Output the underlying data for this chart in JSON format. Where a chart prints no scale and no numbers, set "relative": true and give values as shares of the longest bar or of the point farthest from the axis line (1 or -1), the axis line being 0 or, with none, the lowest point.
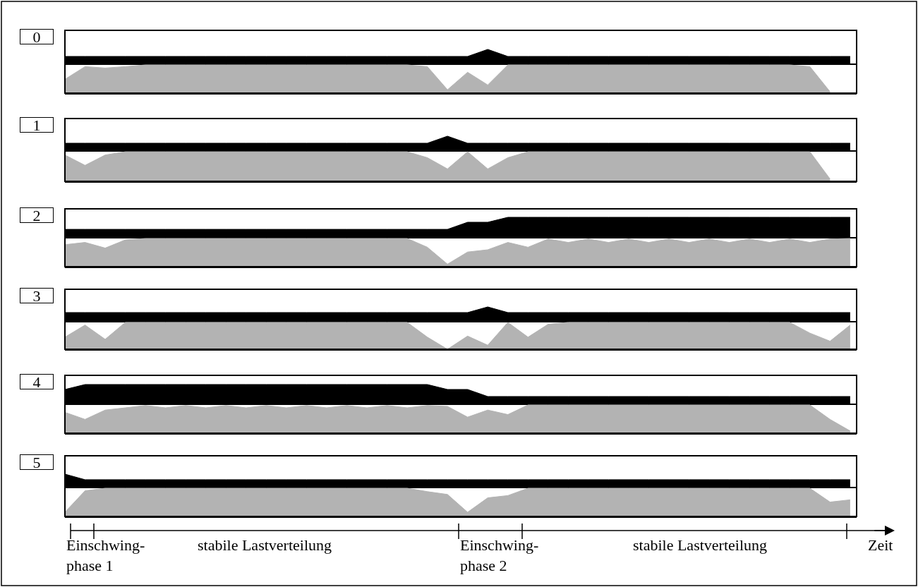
{
  "chart_data": [
    {
      "type": "area",
      "title": "0",
      "relative": true,
      "categories": [
        null,
        null,
        null,
        null,
        null,
        null,
        null,
        null,
        null,
        null,
        null,
        null,
        null,
        null,
        null,
        null,
        null,
        null,
        null,
        null,
        null,
        null,
        null,
        null,
        null,
        null,
        null,
        null,
        null,
        null,
        null,
        null,
        null,
        null,
        null,
        null,
        null,
        null,
        null,
        null
      ],
      "series": [
        {
          "color": "#000000",
          "values": [
            0.5,
            0.5,
            0.5,
            0.5,
            0.5,
            0.5,
            0.5,
            0.5,
            0.5,
            0.5,
            0.5,
            0.5,
            0.5,
            0.5,
            0.5,
            0.5,
            0.5,
            0.5,
            0.5,
            0.5,
            0.5,
            1.0,
            0.5,
            0.5,
            0.5,
            0.5,
            0.5,
            0.5,
            0.5,
            0.5,
            0.5,
            0.5,
            0.5,
            0.5,
            0.5,
            0.5,
            0.5,
            0.5,
            0.5,
            0.5
          ]
        }
      ]
    },
    {
      "type": "area",
      "relative": true,
      "categories": [
        null,
        null,
        null,
        null,
        null,
        null,
        null,
        null,
        null,
        null,
        null,
        null,
        null,
        null,
        null,
        null,
        null,
        null,
        null,
        null,
        null,
        null,
        null,
        null,
        null,
        null,
        null,
        null,
        null,
        null,
        null,
        null,
        null,
        null,
        null,
        null,
        null,
        null,
        null,
        null
      ],
      "series": [
        {
          "color": "#b3b3b3",
          "values": [
            0.49,
            0.94,
            0.89,
            0.94,
            1,
            1,
            1,
            1,
            1,
            1,
            1,
            1,
            1,
            1,
            1,
            1,
            1,
            1,
            0.94,
            0.12,
            0.74,
            0.29,
            1,
            1,
            1,
            1,
            1,
            1,
            1,
            1,
            1,
            1,
            1,
            1,
            1,
            1,
            1,
            0.94,
            0.05,
            null
          ]
        }
      ]
    },
    {
      "type": "area",
      "title": "1",
      "relative": true,
      "categories": [
        null,
        null,
        null,
        null,
        null,
        null,
        null,
        null,
        null,
        null,
        null,
        null,
        null,
        null,
        null,
        null,
        null,
        null,
        null,
        null,
        null,
        null,
        null,
        null,
        null,
        null,
        null,
        null,
        null,
        null,
        null,
        null,
        null,
        null,
        null,
        null,
        null,
        null,
        null,
        null
      ],
      "series": [
        {
          "color": "#000000",
          "values": [
            0.5,
            0.5,
            0.5,
            0.5,
            0.5,
            0.5,
            0.5,
            0.5,
            0.5,
            0.5,
            0.5,
            0.5,
            0.5,
            0.5,
            0.5,
            0.5,
            0.5,
            0.5,
            0.5,
            1.0,
            0.5,
            0.5,
            0.5,
            0.5,
            0.5,
            0.5,
            0.5,
            0.5,
            0.5,
            0.5,
            0.5,
            0.5,
            0.5,
            0.5,
            0.5,
            0.5,
            0.5,
            0.5,
            0.5,
            0.5
          ]
        }
      ]
    },
    {
      "type": "area",
      "relative": true,
      "categories": [
        null,
        null,
        null,
        null,
        null,
        null,
        null,
        null,
        null,
        null,
        null,
        null,
        null,
        null,
        null,
        null,
        null,
        null,
        null,
        null,
        null,
        null,
        null,
        null,
        null,
        null,
        null,
        null,
        null,
        null,
        null,
        null,
        null,
        null,
        null,
        null,
        null,
        null,
        null,
        null
      ],
      "series": [
        {
          "color": "#b3b3b3",
          "values": [
            0.89,
            0.54,
            0.89,
            1,
            1,
            1,
            1,
            1,
            1,
            1,
            1,
            1,
            1,
            1,
            1,
            1,
            1,
            1,
            0.8,
            0.42,
            1,
            0.42,
            0.8,
            1,
            1,
            1,
            1,
            1,
            1,
            1,
            1,
            1,
            1,
            1,
            1,
            1,
            1,
            1,
            0.08,
            null
          ]
        }
      ]
    },
    {
      "type": "area",
      "title": "2",
      "relative": true,
      "categories": [
        null,
        null,
        null,
        null,
        null,
        null,
        null,
        null,
        null,
        null,
        null,
        null,
        null,
        null,
        null,
        null,
        null,
        null,
        null,
        null,
        null,
        null,
        null,
        null,
        null,
        null,
        null,
        null,
        null,
        null,
        null,
        null,
        null,
        null,
        null,
        null,
        null,
        null,
        null,
        null
      ],
      "series": [
        {
          "color": "#000000",
          "values": [
            0.39,
            0.39,
            0.39,
            0.39,
            0.39,
            0.39,
            0.39,
            0.39,
            0.39,
            0.39,
            0.39,
            0.39,
            0.39,
            0.39,
            0.39,
            0.39,
            0.39,
            0.39,
            0.39,
            0.39,
            0.75,
            0.75,
            1.0,
            1.0,
            1.0,
            1.0,
            1.0,
            1.0,
            1.0,
            1.0,
            1.0,
            1.0,
            1.0,
            1.0,
            1.0,
            1.0,
            1.0,
            1.0,
            1.0,
            1.0
          ]
        }
      ]
    },
    {
      "type": "area",
      "relative": true,
      "categories": [
        null,
        null,
        null,
        null,
        null,
        null,
        null,
        null,
        null,
        null,
        null,
        null,
        null,
        null,
        null,
        null,
        null,
        null,
        null,
        null,
        null,
        null,
        null,
        null,
        null,
        null,
        null,
        null,
        null,
        null,
        null,
        null,
        null,
        null,
        null,
        null,
        null,
        null,
        null,
        null
      ],
      "series": [
        {
          "color": "#b3b3b3",
          "values": [
            0.78,
            0.86,
            0.66,
            0.95,
            1,
            1,
            1,
            1,
            1,
            1,
            1,
            1,
            1,
            1,
            1,
            1,
            1,
            1,
            0.69,
            0.09,
            0.52,
            0.6,
            0.86,
            0.69,
            0.98,
            0.86,
            0.98,
            0.86,
            0.98,
            0.86,
            0.98,
            0.86,
            0.98,
            0.86,
            0.98,
            0.86,
            0.98,
            0.86,
            0.98,
            1
          ]
        }
      ]
    },
    {
      "type": "area",
      "title": "3",
      "relative": true,
      "categories": [
        null,
        null,
        null,
        null,
        null,
        null,
        null,
        null,
        null,
        null,
        null,
        null,
        null,
        null,
        null,
        null,
        null,
        null,
        null,
        null,
        null,
        null,
        null,
        null,
        null,
        null,
        null,
        null,
        null,
        null,
        null,
        null,
        null,
        null,
        null,
        null,
        null,
        null,
        null,
        null
      ],
      "series": [
        {
          "color": "#000000",
          "values": [
            0.6,
            0.6,
            0.6,
            0.6,
            0.6,
            0.6,
            0.6,
            0.6,
            0.6,
            0.6,
            0.6,
            0.6,
            0.6,
            0.6,
            0.6,
            0.6,
            0.6,
            0.6,
            0.6,
            0.6,
            0.6,
            1.0,
            0.6,
            0.6,
            0.6,
            0.6,
            0.6,
            0.6,
            0.6,
            0.6,
            0.6,
            0.6,
            0.6,
            0.6,
            0.6,
            0.6,
            0.6,
            0.6,
            0.6,
            0.6
          ]
        }
      ]
    },
    {
      "type": "area",
      "relative": true,
      "categories": [
        null,
        null,
        null,
        null,
        null,
        null,
        null,
        null,
        null,
        null,
        null,
        null,
        null,
        null,
        null,
        null,
        null,
        null,
        null,
        null,
        null,
        null,
        null,
        null,
        null,
        null,
        null,
        null,
        null,
        null,
        null,
        null,
        null,
        null,
        null,
        null,
        null,
        null,
        null,
        null
      ],
      "series": [
        {
          "color": "#b3b3b3",
          "values": [
            0.45,
            0.9,
            0.37,
            1,
            1,
            1,
            1,
            1,
            1,
            1,
            1,
            1,
            1,
            1,
            1,
            1,
            1,
            1,
            0.45,
            0,
            0.49,
            0.15,
            1,
            0.45,
            0.93,
            1,
            1,
            1,
            1,
            1,
            1,
            1,
            1,
            1,
            1,
            1,
            1,
            0.6,
            0.3,
            0.9
          ]
        }
      ]
    },
    {
      "type": "area",
      "title": "4",
      "relative": true,
      "categories": [
        null,
        null,
        null,
        null,
        null,
        null,
        null,
        null,
        null,
        null,
        null,
        null,
        null,
        null,
        null,
        null,
        null,
        null,
        null,
        null,
        null,
        null,
        null,
        null,
        null,
        null,
        null,
        null,
        null,
        null,
        null,
        null,
        null,
        null,
        null,
        null,
        null,
        null,
        null,
        null
      ],
      "series": [
        {
          "color": "#000000",
          "values": [
            0.74,
            1.0,
            1.0,
            1.0,
            1.0,
            1.0,
            1.0,
            1.0,
            1.0,
            1.0,
            1.0,
            1.0,
            1.0,
            1.0,
            1.0,
            1.0,
            1.0,
            1.0,
            1.0,
            0.74,
            0.74,
            0.37,
            0.37,
            0.37,
            0.37,
            0.37,
            0.37,
            0.37,
            0.37,
            0.37,
            0.37,
            0.37,
            0.37,
            0.37,
            0.37,
            0.37,
            0.37,
            0.37,
            0.37,
            0.37
          ]
        }
      ]
    },
    {
      "type": "area",
      "relative": true,
      "categories": [
        null,
        null,
        null,
        null,
        null,
        null,
        null,
        null,
        null,
        null,
        null,
        null,
        null,
        null,
        null,
        null,
        null,
        null,
        null,
        null,
        null,
        null,
        null,
        null,
        null,
        null,
        null,
        null,
        null,
        null,
        null,
        null,
        null,
        null,
        null,
        null,
        null,
        null,
        null,
        null
      ],
      "series": [
        {
          "color": "#b3b3b3",
          "values": [
            0.74,
            0.49,
            0.82,
            0.9,
            0.98,
            0.9,
            0.98,
            0.9,
            0.98,
            0.9,
            0.98,
            0.9,
            0.98,
            0.9,
            0.98,
            0.9,
            0.98,
            0.9,
            0.98,
            0.95,
            0.57,
            0.82,
            0.66,
            1,
            1,
            1,
            1,
            1,
            1,
            1,
            1,
            1,
            1,
            1,
            1,
            1,
            1,
            1,
            0.49,
            0.08
          ]
        }
      ]
    },
    {
      "type": "area",
      "title": "5",
      "relative": true,
      "categories": [
        null,
        null,
        null,
        null,
        null,
        null,
        null,
        null,
        null,
        null,
        null,
        null,
        null,
        null,
        null,
        null,
        null,
        null,
        null,
        null,
        null,
        null,
        null,
        null,
        null,
        null,
        null,
        null,
        null,
        null,
        null,
        null,
        null,
        null,
        null,
        null,
        null,
        null,
        null,
        null
      ],
      "series": [
        {
          "color": "#000000",
          "values": [
            1.0,
            0.56,
            0.56,
            0.56,
            0.56,
            0.56,
            0.56,
            0.56,
            0.56,
            0.56,
            0.56,
            0.56,
            0.56,
            0.56,
            0.56,
            0.56,
            0.56,
            0.56,
            0.56,
            0.56,
            0.56,
            0.56,
            0.56,
            0.56,
            0.56,
            0.56,
            0.56,
            0.56,
            0.56,
            0.56,
            0.56,
            0.56,
            0.56,
            0.56,
            0.56,
            0.56,
            0.56,
            0.56,
            0.56,
            0.56
          ]
        }
      ]
    },
    {
      "type": "area",
      "relative": true,
      "categories": [
        null,
        null,
        null,
        null,
        null,
        null,
        null,
        null,
        null,
        null,
        null,
        null,
        null,
        null,
        null,
        null,
        null,
        null,
        null,
        null,
        null,
        null,
        null,
        null,
        null,
        null,
        null,
        null,
        null,
        null,
        null,
        null,
        null,
        null,
        null,
        null,
        null,
        null,
        null,
        null
      ],
      "annotations": [
        "Einschwing-\nphase 1",
        "stabile Lastverteilung",
        "Einschwing-\nphase 2",
        "stabile Lastverteilung",
        "Zeit"
      ],
      "series": [
        {
          "color": "#b3b3b3",
          "values": [
            0.15,
            0.91,
            1,
            1,
            1,
            1,
            1,
            1,
            1,
            1,
            1,
            1,
            1,
            1,
            1,
            1,
            1,
            1,
            0.88,
            0.78,
            0.15,
            0.66,
            0.74,
            1,
            1,
            1,
            1,
            1,
            1,
            1,
            1,
            1,
            1,
            1,
            1,
            1,
            1,
            1,
            0.51,
            0.59
          ]
        }
      ]
    }
  ]
}
